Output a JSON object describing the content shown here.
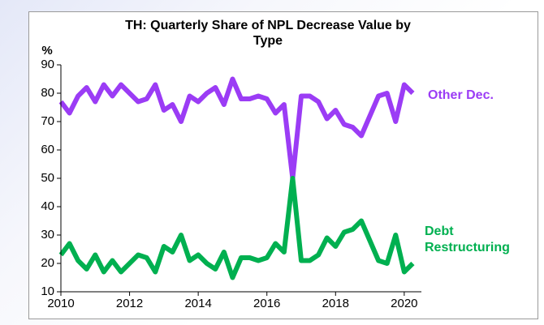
{
  "chart_data": {
    "type": "line",
    "title": "TH: Quarterly Share of NPL Decrease Value by Type",
    "y_label": "%",
    "x": [
      2010,
      2010.25,
      2010.5,
      2010.75,
      2011,
      2011.25,
      2011.5,
      2011.75,
      2012,
      2012.25,
      2012.5,
      2012.75,
      2013,
      2013.25,
      2013.5,
      2013.75,
      2014,
      2014.25,
      2014.5,
      2014.75,
      2015,
      2015.25,
      2015.5,
      2015.75,
      2016,
      2016.25,
      2016.5,
      2016.75,
      2017,
      2017.25,
      2017.5,
      2017.75,
      2018,
      2018.25,
      2018.5,
      2018.75,
      2019,
      2019.25,
      2019.5,
      2019.75,
      2020,
      2020.25
    ],
    "series": [
      {
        "name": "Other Dec.",
        "color": "#9b3cf5",
        "values": [
          77,
          73,
          79,
          82,
          77,
          83,
          79,
          83,
          80,
          77,
          78,
          83,
          74,
          76,
          70,
          79,
          77,
          80,
          82,
          76,
          85,
          78,
          78,
          79,
          78,
          73,
          76,
          50,
          79,
          79,
          77,
          71,
          74,
          69,
          68,
          65,
          72,
          79,
          80,
          70,
          83,
          80
        ]
      },
      {
        "name": "Debt Restructuring",
        "color": "#00b050",
        "values": [
          23,
          27,
          21,
          18,
          23,
          17,
          21,
          17,
          20,
          23,
          22,
          17,
          26,
          24,
          30,
          21,
          23,
          20,
          18,
          24,
          15,
          22,
          22,
          21,
          22,
          27,
          24,
          50,
          21,
          21,
          23,
          29,
          26,
          31,
          32,
          35,
          28,
          21,
          20,
          30,
          17,
          20
        ]
      }
    ],
    "xlim": [
      2010,
      2020.5
    ],
    "xticks": [
      2010,
      2012,
      2014,
      2016,
      2018,
      2020
    ],
    "ylim": [
      10,
      90
    ],
    "yticks": [
      10,
      20,
      30,
      40,
      50,
      60,
      70,
      80,
      90
    ],
    "grid": false
  }
}
